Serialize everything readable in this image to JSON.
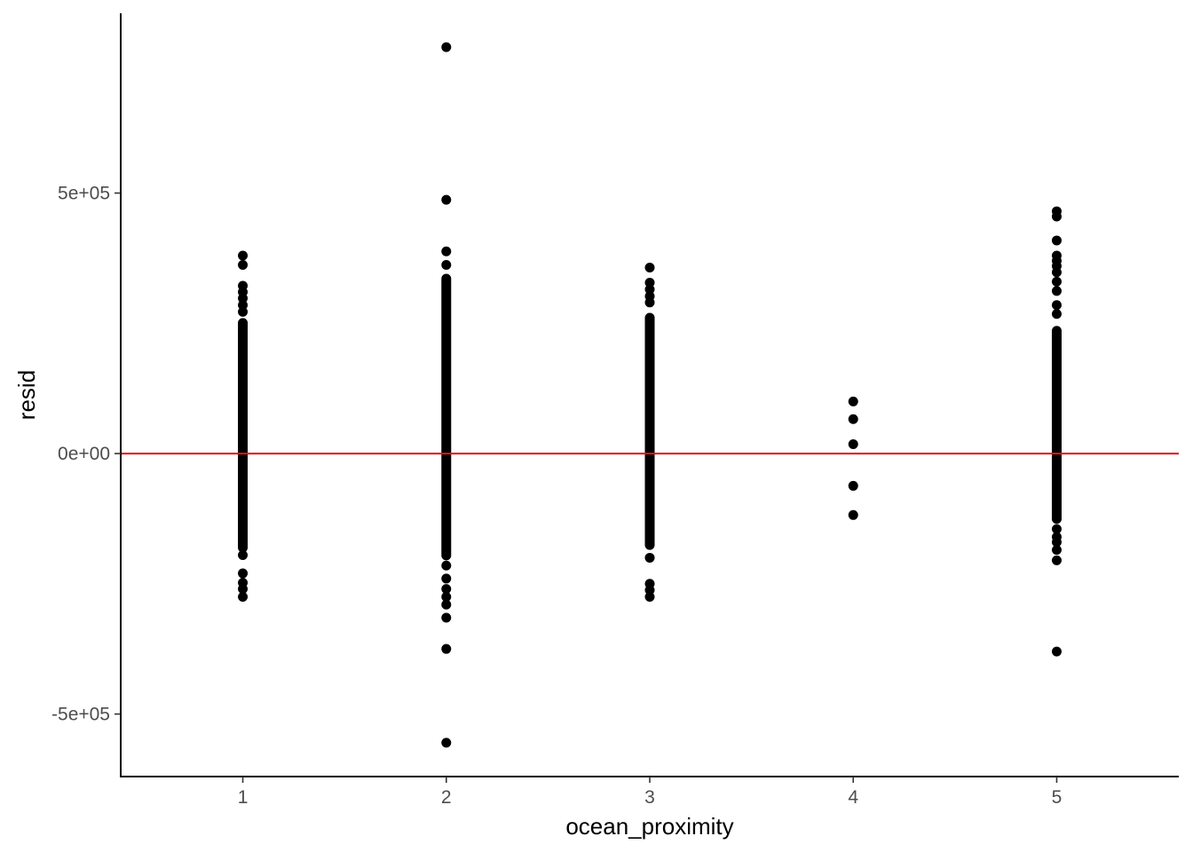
{
  "chart_data": {
    "type": "scatter",
    "title": "",
    "xlabel": "ocean_proximity",
    "ylabel": "resid",
    "x_ticks": [
      "1",
      "2",
      "3",
      "4",
      "5"
    ],
    "y_ticks": [
      {
        "value": 500000,
        "label": "5e+05"
      },
      {
        "value": 0,
        "label": "0e+00"
      },
      {
        "value": -500000,
        "label": "-5e+05"
      }
    ],
    "xlim": [
      0.4,
      5.6
    ],
    "ylim": [
      -620000,
      845000
    ],
    "grid": false,
    "reference_line": {
      "y": 0,
      "color": "#e3121b"
    },
    "point_color": "#000000",
    "groups": [
      {
        "x": 1,
        "dense_range": [
          -190000,
          260000
        ],
        "y": [
          380000,
          362000,
          322000,
          310000,
          298000,
          285000,
          272000,
          -195000,
          -230000,
          -248000,
          -260000,
          -275000
        ]
      },
      {
        "x": 2,
        "dense_range": [
          -205000,
          345000
        ],
        "y": [
          780000,
          487000,
          388000,
          362000,
          -215000,
          -240000,
          -260000,
          -275000,
          -290000,
          -315000,
          -375000,
          -555000
        ]
      },
      {
        "x": 3,
        "dense_range": [
          -185000,
          270000
        ],
        "y": [
          357000,
          328000,
          315000,
          302000,
          290000,
          -200000,
          -250000,
          -262000,
          -275000
        ]
      },
      {
        "x": 4,
        "y": [
          100000,
          66000,
          18000,
          -62000,
          -118000
        ]
      },
      {
        "x": 5,
        "dense_range": [
          -135000,
          245000
        ],
        "y": [
          465000,
          455000,
          409000,
          380000,
          370000,
          360000,
          348000,
          330000,
          312000,
          285000,
          268000,
          -145000,
          -160000,
          -170000,
          -185000,
          -205000,
          -380000
        ]
      }
    ]
  }
}
